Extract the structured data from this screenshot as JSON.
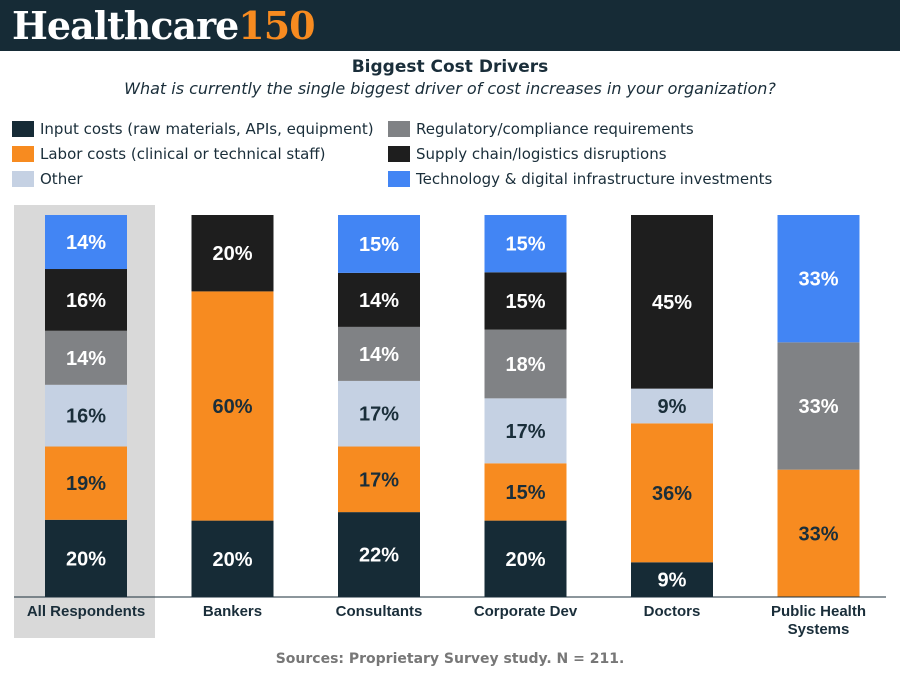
{
  "brand": {
    "name_main": "Healthcare",
    "name_number": "150"
  },
  "header": {
    "title": "Biggest Cost Drivers",
    "subtitle": "What is currently the single biggest driver of cost increases in your organization?"
  },
  "legend": [
    {
      "label": "Input costs (raw materials, APIs, equipment)",
      "color": "#162b36"
    },
    {
      "label": "Regulatory/compliance requirements",
      "color": "#808285"
    },
    {
      "label": "Labor costs (clinical or technical staff)",
      "color": "#f78b20"
    },
    {
      "label": "Supply chain/logistics disruptions",
      "color": "#1e1e1e"
    },
    {
      "label": "Other",
      "color": "#c5d1e3"
    },
    {
      "label": "Technology & digital infrastructure investments",
      "color": "#4285f4"
    }
  ],
  "chart_data": {
    "type": "bar",
    "stacked": true,
    "normalized_percent": true,
    "categories": [
      "All Respondents",
      "Bankers",
      "Consultants",
      "Corporate Dev",
      "Doctors",
      "Public Health Systems"
    ],
    "highlighted_category": "All Respondents",
    "series": [
      {
        "name": "Input costs (raw materials, APIs, equipment)",
        "color": "#162b36",
        "text_color": "#ffffff",
        "values": [
          20,
          20,
          22,
          20,
          9,
          0
        ]
      },
      {
        "name": "Labor costs (clinical or technical staff)",
        "color": "#f78b20",
        "text_color": "#1a2e3a",
        "values": [
          19,
          60,
          17,
          15,
          36,
          33
        ]
      },
      {
        "name": "Other",
        "color": "#c5d1e3",
        "text_color": "#1a2e3a",
        "values": [
          16,
          0,
          17,
          17,
          9,
          0
        ]
      },
      {
        "name": "Regulatory/compliance requirements",
        "color": "#808285",
        "text_color": "#ffffff",
        "values": [
          14,
          0,
          14,
          18,
          0,
          33
        ]
      },
      {
        "name": "Supply chain/logistics disruptions",
        "color": "#1e1e1e",
        "text_color": "#ffffff",
        "values": [
          16,
          20,
          14,
          15,
          45,
          0
        ]
      },
      {
        "name": "Technology & digital infrastructure investments",
        "color": "#4285f4",
        "text_color": "#ffffff",
        "values": [
          14,
          0,
          15,
          15,
          0,
          33
        ]
      }
    ],
    "data_label_suffix": "%",
    "title": "Biggest Cost Drivers",
    "xlabel": "",
    "ylabel": "",
    "ylim": [
      0,
      100
    ]
  },
  "footer": {
    "source": "Sources: Proprietary Survey study. N = 211."
  }
}
